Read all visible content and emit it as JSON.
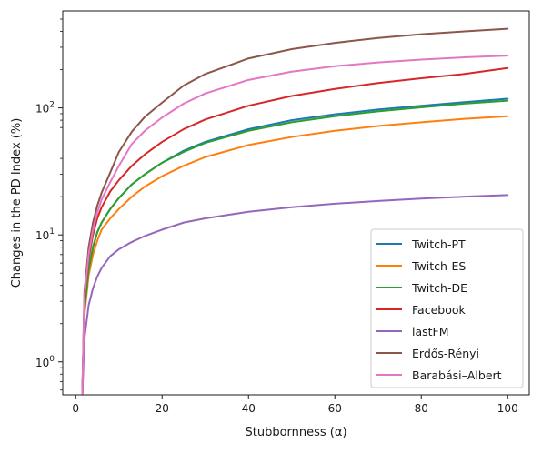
{
  "chart_data": {
    "type": "line",
    "title": "",
    "xlabel": "Stubbornness (α)",
    "ylabel": "Changes in the PD Index (%)",
    "xlim": [
      -3,
      105
    ],
    "ylim": [
      0.55,
      580
    ],
    "yscale": "log",
    "xticks": [
      {
        "value": 0,
        "label": "0"
      },
      {
        "value": 20,
        "label": "20"
      },
      {
        "value": 40,
        "label": "40"
      },
      {
        "value": 60,
        "label": "60"
      },
      {
        "value": 80,
        "label": "80"
      },
      {
        "value": 100,
        "label": "100"
      }
    ],
    "yticks": [
      {
        "value": 1,
        "base": "10",
        "exp": "0"
      },
      {
        "value": 10,
        "base": "10",
        "exp": "1"
      },
      {
        "value": 100,
        "base": "10",
        "exp": "2"
      }
    ],
    "grid": false,
    "legend_position": "lower right",
    "x": [
      1.5,
      2,
      3,
      4,
      5,
      6,
      8,
      10,
      13,
      16,
      20,
      25,
      30,
      40,
      50,
      60,
      70,
      80,
      90,
      100
    ],
    "series": [
      {
        "name": "Twitch-PT",
        "color": "#1f77b4",
        "values": [
          0.5,
          2.5,
          5.5,
          8.0,
          10.5,
          12.5,
          16.0,
          19.5,
          25.0,
          30.0,
          37.0,
          46.0,
          54.0,
          68.0,
          80.0,
          89.0,
          97.0,
          104.0,
          111.0,
          118.0
        ]
      },
      {
        "name": "Twitch-ES",
        "color": "#ff7f0e",
        "values": [
          0.5,
          2.3,
          4.8,
          7.0,
          9.0,
          11.0,
          13.5,
          16.0,
          20.0,
          24.0,
          29.0,
          35.0,
          41.0,
          51.0,
          59.0,
          66.0,
          72.0,
          77.0,
          82.0,
          86.0
        ]
      },
      {
        "name": "Twitch-DE",
        "color": "#2ca02c",
        "values": [
          0.5,
          2.5,
          5.3,
          8.0,
          10.5,
          12.5,
          16.0,
          19.5,
          25.0,
          30.0,
          37.0,
          45.0,
          53.0,
          66.0,
          77.0,
          86.0,
          94.0,
          101.0,
          108.0,
          114.0
        ]
      },
      {
        "name": "Facebook",
        "color": "#d62728",
        "values": [
          0.5,
          3.0,
          6.5,
          10.0,
          13.5,
          16.5,
          22.0,
          27.0,
          35.0,
          43.0,
          54.0,
          68.0,
          81.0,
          104.0,
          124.0,
          141.0,
          157.0,
          171.0,
          185.0,
          206.0
        ]
      },
      {
        "name": "lastFM",
        "color": "#9467bd",
        "values": [
          0.5,
          1.5,
          2.8,
          3.8,
          4.7,
          5.5,
          6.8,
          7.7,
          8.8,
          9.8,
          11.0,
          12.5,
          13.5,
          15.2,
          16.5,
          17.6,
          18.5,
          19.3,
          20.0,
          20.6
        ]
      },
      {
        "name": "Erdős-Rényi",
        "color": "#8c564b",
        "values": [
          0.5,
          3.5,
          8.0,
          12.5,
          17.0,
          21.5,
          31.0,
          45.0,
          65.0,
          85.0,
          110.0,
          150.0,
          185.0,
          245.0,
          290.0,
          325.0,
          355.0,
          380.0,
          400.0,
          420.0
        ]
      },
      {
        "name": "Barabási–Albert",
        "color": "#e377c2",
        "values": [
          0.5,
          3.2,
          7.0,
          11.0,
          15.0,
          19.0,
          26.0,
          35.0,
          52.0,
          66.0,
          84.0,
          108.0,
          130.0,
          166.0,
          193.0,
          213.0,
          228.0,
          240.0,
          250.0,
          258.0
        ]
      }
    ]
  }
}
